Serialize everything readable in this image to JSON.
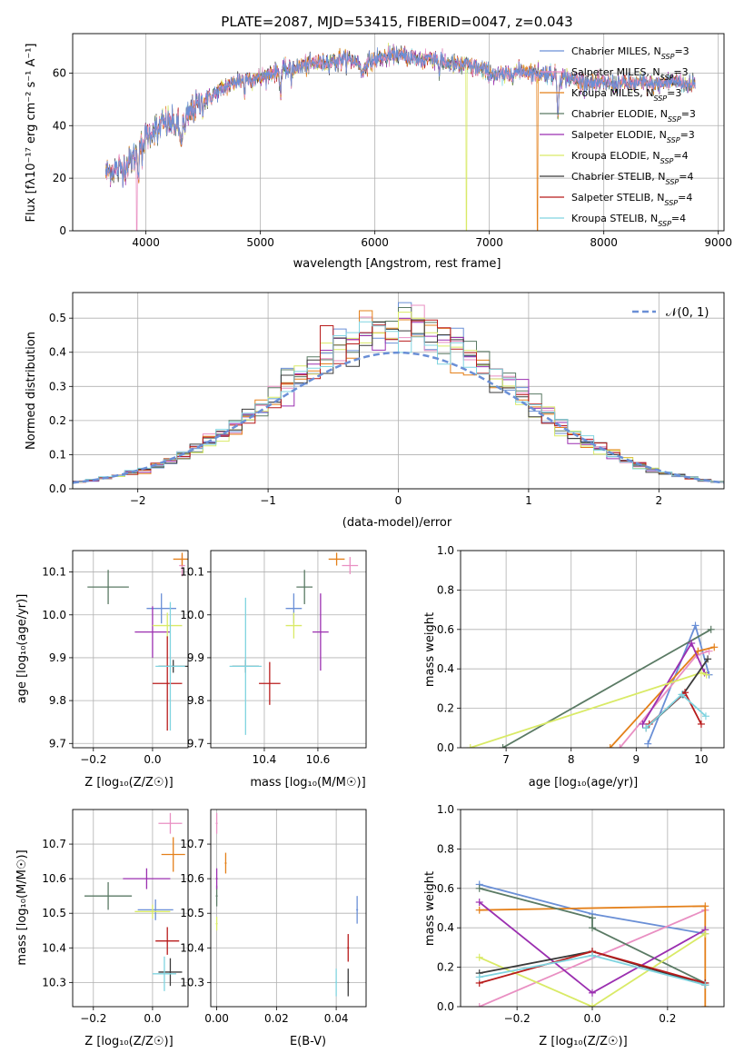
{
  "colors": [
    "#6a8fd6",
    "#e98fc2",
    "#e4801a",
    "#5a7a64",
    "#9b2fb0",
    "#d9ea66",
    "#3a3a3a",
    "#b81b1b",
    "#80d4e0"
  ],
  "labels": {
    "title": "PLATE=2087, MJD=53415, FIBERID=0047, z=0.043",
    "spec_x": "wavelength [Angstrom, rest frame]",
    "spec_y": "Flux [fλ10⁻¹⁷ erg cm⁻² s⁻¹ A⁻¹]",
    "hist_x": "(data-model)/error",
    "hist_y": "Normed distribution",
    "hist_legend": "𝒩(0, 1)",
    "z_x": "Z [log₁₀(Z/Z☉)]",
    "age_y": "age  [log₁₀(age/yr)]",
    "mass_x": "mass [log₁₀(M/M☉)]",
    "mw_y": "mass weight",
    "age_x": "age  [log₁₀(age/yr)]",
    "mass_y": "mass [log₁₀(M/M☉)]",
    "ebv_x": "E(B-V)",
    "z2_x": "Z [log₁₀(Z/Z☉)]",
    "mw2_y": "mass weight"
  },
  "chart_data": [
    {
      "type": "line",
      "title": "PLATE=2087, MJD=53415, FIBERID=0047, z=0.043",
      "xlabel": "wavelength [Angstrom, rest frame]",
      "ylabel": "Flux [fλ10⁻¹⁷ erg cm⁻² s⁻¹ A⁻¹]",
      "xlim": [
        3360,
        9050
      ],
      "ylim": [
        0,
        75
      ],
      "xticks": [
        4000,
        5000,
        6000,
        7000,
        8000,
        9000
      ],
      "yticks": [
        0,
        20,
        40,
        60
      ],
      "legend": [
        {
          "name": "Chabrier MILES, N",
          "sub": "SSP",
          "suffix": "=3"
        },
        {
          "name": "Salpeter MILES, N",
          "sub": "SSP",
          "suffix": "=3"
        },
        {
          "name": "Kroupa MILES, N",
          "sub": "SSP",
          "suffix": "=3"
        },
        {
          "name": "Chabrier ELODIE, N",
          "sub": "SSP",
          "suffix": "=3"
        },
        {
          "name": "Salpeter ELODIE, N",
          "sub": "SSP",
          "suffix": "=3"
        },
        {
          "name": "Kroupa ELODIE, N",
          "sub": "SSP",
          "suffix": "=4"
        },
        {
          "name": "Chabrier STELIB, N",
          "sub": "SSP",
          "suffix": "=4"
        },
        {
          "name": "Salpeter STELIB, N",
          "sub": "SSP",
          "suffix": "=4"
        },
        {
          "name": "Kroupa STELIB, N",
          "sub": "SSP",
          "suffix": "=4"
        }
      ],
      "legend_loc": "right",
      "continuum": [
        [
          3650,
          22
        ],
        [
          3700,
          23
        ],
        [
          3800,
          24
        ],
        [
          3900,
          28
        ],
        [
          3950,
          33
        ],
        [
          4000,
          36
        ],
        [
          4100,
          40
        ],
        [
          4200,
          41
        ],
        [
          4300,
          40
        ],
        [
          4350,
          42
        ],
        [
          4400,
          46
        ],
        [
          4500,
          49
        ],
        [
          4600,
          52
        ],
        [
          4700,
          55
        ],
        [
          4800,
          57
        ],
        [
          4900,
          58
        ],
        [
          5000,
          58
        ],
        [
          5100,
          60
        ],
        [
          5200,
          61
        ],
        [
          5300,
          62
        ],
        [
          5400,
          63
        ],
        [
          5500,
          64
        ],
        [
          5600,
          64
        ],
        [
          5700,
          65
        ],
        [
          5800,
          65
        ],
        [
          5900,
          63
        ],
        [
          6000,
          65
        ],
        [
          6100,
          66
        ],
        [
          6200,
          67
        ],
        [
          6300,
          66
        ],
        [
          6400,
          65
        ],
        [
          6500,
          66
        ],
        [
          6600,
          64
        ],
        [
          6700,
          63
        ],
        [
          6800,
          63
        ],
        [
          6900,
          62
        ],
        [
          7000,
          60
        ],
        [
          7100,
          59
        ],
        [
          7200,
          60
        ],
        [
          7300,
          61
        ],
        [
          7400,
          60
        ],
        [
          7500,
          60
        ],
        [
          7600,
          59
        ],
        [
          7700,
          58
        ],
        [
          7800,
          57
        ],
        [
          7900,
          56
        ],
        [
          8000,
          56
        ],
        [
          8100,
          56
        ],
        [
          8200,
          56
        ],
        [
          8300,
          56
        ],
        [
          8400,
          56
        ],
        [
          8500,
          56
        ],
        [
          8600,
          57
        ],
        [
          8700,
          56
        ],
        [
          8800,
          56
        ]
      ],
      "absorption": [
        [
          3934,
          9,
          6
        ],
        [
          3969,
          9,
          5
        ],
        [
          4101,
          5,
          6
        ],
        [
          4304,
          6,
          10
        ],
        [
          4340,
          5,
          4
        ],
        [
          4861,
          6,
          4
        ],
        [
          5175,
          8,
          6
        ],
        [
          5270,
          6,
          3
        ],
        [
          5890,
          4,
          10
        ],
        [
          6563,
          6,
          3
        ],
        [
          7600,
          15,
          7
        ]
      ],
      "dropouts": [
        {
          "series": 1,
          "x": 3920
        },
        {
          "series": 5,
          "x": 6800
        },
        {
          "series": 2,
          "x": 7420
        }
      ]
    },
    {
      "type": "histogram",
      "xlabel": "(data-model)/error",
      "ylabel": "Normed distribution",
      "xlim": [
        -2.5,
        2.5
      ],
      "ylim": [
        0,
        0.575
      ],
      "xticks": [
        -2,
        -1,
        0,
        1,
        2
      ],
      "yticks": [
        0.0,
        0.1,
        0.2,
        0.3,
        0.4,
        0.5
      ],
      "bin_width": 0.1,
      "reference": {
        "name": "𝒩(0, 1)",
        "mean": 0,
        "sigma": 1
      }
    },
    {
      "type": "scatter",
      "subtype": "errorbar",
      "xlabel": "Z [log₁₀(Z/Z☉)]",
      "ylabel": "age  [log₁₀(age/yr)]",
      "xlim": [
        -0.27,
        0.12
      ],
      "ylim": [
        9.69,
        10.15
      ],
      "xticks": [
        -0.2,
        0.0
      ],
      "yticks": [
        9.7,
        9.8,
        9.9,
        10.0,
        10.1
      ],
      "points": [
        {
          "x": 0.03,
          "xerr": 0.05,
          "y": 10.015,
          "yerr": 0.035
        },
        {
          "x": 0.1,
          "xerr": 0.01,
          "y": 10.115,
          "yerr": 0.025
        },
        {
          "x": 0.1,
          "xerr": 0.03,
          "y": 10.13,
          "yerr": 0.015
        },
        {
          "x": -0.15,
          "xerr": 0.07,
          "y": 10.065,
          "yerr": 0.04
        },
        {
          "x": 0.0,
          "xerr": 0.06,
          "y": 9.96,
          "yerr": 0.06
        },
        {
          "x": 0.05,
          "xerr": 0.05,
          "y": 9.975,
          "yerr": 0.03
        },
        {
          "x": 0.07,
          "xerr": 0.05,
          "y": 9.88,
          "yerr": 0.015
        },
        {
          "x": 0.05,
          "xerr": 0.05,
          "y": 9.84,
          "yerr": 0.11
        },
        {
          "x": 0.06,
          "xerr": 0.05,
          "y": 9.88,
          "yerr": 0.15
        }
      ]
    },
    {
      "type": "scatter",
      "subtype": "errorbar",
      "xlabel": "mass [log₁₀(M/M☉)]",
      "ylabel": "",
      "xlim": [
        10.2,
        10.78
      ],
      "ylim": [
        9.69,
        10.15
      ],
      "xticks": [
        10.4,
        10.6
      ],
      "yticks": [
        9.7,
        9.8,
        9.9,
        10.0,
        10.1
      ],
      "points": [
        {
          "x": 10.51,
          "xerr": 0.03,
          "y": 10.015,
          "yerr": 0.035
        },
        {
          "x": 10.72,
          "xerr": 0.03,
          "y": 10.115,
          "yerr": 0.02
        },
        {
          "x": 10.67,
          "xerr": 0.03,
          "y": 10.13,
          "yerr": 0.015
        },
        {
          "x": 10.55,
          "xerr": 0.03,
          "y": 10.065,
          "yerr": 0.04
        },
        {
          "x": 10.61,
          "xerr": 0.03,
          "y": 9.96,
          "yerr": 0.09
        },
        {
          "x": 10.51,
          "xerr": 0.03,
          "y": 9.975,
          "yerr": 0.03
        },
        {
          "x": 10.33,
          "xerr": 0.05,
          "y": 9.88,
          "yerr": 0.015
        },
        {
          "x": 10.42,
          "xerr": 0.04,
          "y": 9.84,
          "yerr": 0.05
        },
        {
          "x": 10.33,
          "xerr": 0.06,
          "y": 9.88,
          "yerr": 0.16
        }
      ]
    },
    {
      "type": "line",
      "xlabel": "age  [log₁₀(age/yr)]",
      "ylabel": "mass weight",
      "xlim": [
        6.3,
        10.35
      ],
      "ylim": [
        0,
        1.0
      ],
      "xticks": [
        7,
        8,
        9,
        10
      ],
      "yticks": [
        0.0,
        0.2,
        0.4,
        0.6,
        0.8,
        1.0
      ],
      "series": [
        {
          "x": [
            9.18,
            9.91,
            10.12
          ],
          "y": [
            0.02,
            0.62,
            0.37
          ]
        },
        {
          "x": [
            8.75,
            9.93,
            10.12
          ],
          "y": [
            0.0,
            0.47,
            0.49
          ]
        },
        {
          "x": [
            8.6,
            9.95,
            10.2
          ],
          "y": [
            0.0,
            0.49,
            0.51
          ]
        },
        {
          "x": [
            6.95,
            10.15
          ],
          "y": [
            0.0,
            0.6
          ]
        },
        {
          "x": [
            9.1,
            9.85,
            10.05
          ],
          "y": [
            0.12,
            0.53,
            0.38
          ]
        },
        {
          "x": [
            6.45,
            10.0,
            10.08
          ],
          "y": [
            0.0,
            0.38,
            0.37
          ]
        },
        {
          "x": [
            9.15,
            9.72,
            10.1
          ],
          "y": [
            0.1,
            0.27,
            0.45
          ]
        },
        {
          "x": [
            9.2,
            9.75,
            10.0
          ],
          "y": [
            0.12,
            0.28,
            0.12
          ]
        },
        {
          "x": [
            9.15,
            9.7,
            10.07
          ],
          "y": [
            0.1,
            0.27,
            0.16
          ]
        }
      ]
    },
    {
      "type": "scatter",
      "subtype": "errorbar",
      "xlabel": "Z [log₁₀(Z/Z☉)]",
      "ylabel": "mass [log₁₀(M/M☉)]",
      "xlim": [
        -0.27,
        0.12
      ],
      "ylim": [
        10.23,
        10.8
      ],
      "xticks": [
        -0.2,
        0.0
      ],
      "yticks": [
        10.3,
        10.4,
        10.5,
        10.6,
        10.7
      ],
      "points": [
        {
          "x": 0.01,
          "xerr": 0.06,
          "y": 10.51,
          "yerr": 0.03
        },
        {
          "x": 0.06,
          "xerr": 0.04,
          "y": 10.76,
          "yerr": 0.03
        },
        {
          "x": 0.07,
          "xerr": 0.04,
          "y": 10.67,
          "yerr": 0.05
        },
        {
          "x": -0.15,
          "xerr": 0.08,
          "y": 10.55,
          "yerr": 0.04
        },
        {
          "x": -0.02,
          "xerr": 0.08,
          "y": 10.6,
          "yerr": 0.03
        },
        {
          "x": 0.0,
          "xerr": 0.06,
          "y": 10.505,
          "yerr": 0.02
        },
        {
          "x": 0.06,
          "xerr": 0.04,
          "y": 10.33,
          "yerr": 0.04
        },
        {
          "x": 0.05,
          "xerr": 0.04,
          "y": 10.42,
          "yerr": 0.04
        },
        {
          "x": 0.04,
          "xerr": 0.04,
          "y": 10.325,
          "yerr": 0.05
        }
      ]
    },
    {
      "type": "scatter",
      "subtype": "errorbar",
      "xlabel": "E(B-V)",
      "ylabel": "",
      "xlim": [
        -0.002,
        0.05
      ],
      "ylim": [
        10.23,
        10.8
      ],
      "xticks": [
        0.0,
        0.02,
        0.04
      ],
      "xticklabels": [
        "0.00",
        "0.02",
        "0.04"
      ],
      "yticks": [
        10.3,
        10.4,
        10.5,
        10.6,
        10.7
      ],
      "points": [
        {
          "x": 0.047,
          "xerr": 0,
          "y": 10.51,
          "yerr": 0.04
        },
        {
          "x": 0.0,
          "xerr": 0,
          "y": 10.76,
          "yerr": 0.03
        },
        {
          "x": 0.003,
          "xerr": 0,
          "y": 10.645,
          "yerr": 0.03
        },
        {
          "x": 0.0,
          "xerr": 0,
          "y": 10.55,
          "yerr": 0.03
        },
        {
          "x": 0.0,
          "xerr": 0,
          "y": 10.6,
          "yerr": 0.03
        },
        {
          "x": 0.0,
          "xerr": 0,
          "y": 10.47,
          "yerr": 0.02
        },
        {
          "x": 0.044,
          "xerr": 0,
          "y": 10.3,
          "yerr": 0.04
        },
        {
          "x": 0.044,
          "xerr": 0,
          "y": 10.4,
          "yerr": 0.04
        },
        {
          "x": 0.04,
          "xerr": 0,
          "y": 10.3,
          "yerr": 0.04
        }
      ]
    },
    {
      "type": "line",
      "xlabel": "Z [log₁₀(Z/Z☉)]",
      "ylabel": "mass weight",
      "xlim": [
        -0.35,
        0.35
      ],
      "ylim": [
        0,
        1.0
      ],
      "xticks": [
        -0.2,
        0.0,
        0.2
      ],
      "yticks": [
        0.0,
        0.2,
        0.4,
        0.6,
        0.8,
        1.0
      ],
      "series": [
        {
          "x": [
            -0.3,
            0.0,
            0.3
          ],
          "y": [
            0.62,
            0.47,
            0.37
          ]
        },
        {
          "x": [
            -0.3,
            0.3,
            0.3
          ],
          "y": [
            0.0,
            0.49,
            0.49
          ]
        },
        {
          "x": [
            -0.3,
            0.3,
            0.3
          ],
          "y": [
            0.49,
            0.51,
            0.0
          ]
        },
        {
          "x": [
            -0.3,
            0.0,
            0.0,
            0.3
          ],
          "y": [
            0.6,
            0.45,
            0.4,
            0.12
          ]
        },
        {
          "x": [
            -0.3,
            0.0,
            0.3
          ],
          "y": [
            0.53,
            0.07,
            0.39
          ]
        },
        {
          "x": [
            -0.3,
            0.0,
            0.3
          ],
          "y": [
            0.25,
            0.0,
            0.37
          ]
        },
        {
          "x": [
            -0.3,
            0.0,
            0.3
          ],
          "y": [
            0.17,
            0.28,
            0.11
          ]
        },
        {
          "x": [
            -0.3,
            0.0,
            0.3
          ],
          "y": [
            0.12,
            0.28,
            0.12
          ]
        },
        {
          "x": [
            -0.3,
            0.0,
            0.3
          ],
          "y": [
            0.15,
            0.26,
            0.11
          ]
        }
      ]
    }
  ]
}
